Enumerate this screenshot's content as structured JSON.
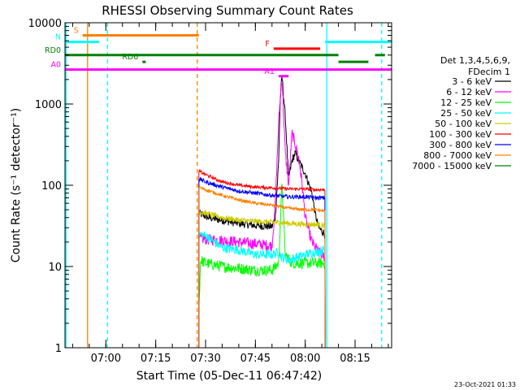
{
  "chart_data": {
    "type": "line",
    "title": "RHESSI Observing Summary Count Rates",
    "xlabel": "Start Time (05-Dec-11 06:47:42)",
    "ylabel": "Count Rate (s⁻¹ detector⁻¹)",
    "y_scale": "log",
    "xlim": [
      "06:47:42",
      "08:26:00"
    ],
    "ylim": [
      1,
      10000
    ],
    "x_ticks": [
      "07:00",
      "07:15",
      "07:30",
      "07:45",
      "08:00",
      "08:15"
    ],
    "y_ticks": [
      "1",
      "10",
      "100",
      "1000",
      "10000"
    ],
    "legend": {
      "placement": "right",
      "header": [
        "Det 1,3,4,5,6,9,",
        "FDecim 1"
      ],
      "entries": [
        {
          "name": "3 - 6 keV",
          "color": "#000000"
        },
        {
          "name": "6 - 12 keV",
          "color": "#ff00ff"
        },
        {
          "name": "12 - 25 keV",
          "color": "#00ff00"
        },
        {
          "name": "25 - 50 keV",
          "color": "#00ffff"
        },
        {
          "name": "50 - 100 keV",
          "color": "#cccc00"
        },
        {
          "name": "100 - 300 keV",
          "color": "#ff0000"
        },
        {
          "name": "300 - 800 keV",
          "color": "#0000ff"
        },
        {
          "name": "800 - 7000 keV",
          "color": "#ff8000"
        },
        {
          "name": "7000 - 15000 keV",
          "color": "#008000"
        }
      ]
    },
    "time_start": "07:28:00",
    "time_end": "08:06:00",
    "series": [
      {
        "name": "3 - 6 keV",
        "color": "#000000",
        "points": [
          [
            "07:28",
            45
          ],
          [
            "07:31",
            40
          ],
          [
            "07:35",
            37
          ],
          [
            "07:40",
            34
          ],
          [
            "07:45",
            32
          ],
          [
            "07:50",
            31
          ],
          [
            "07:51",
            40
          ],
          [
            "07:52",
            200
          ],
          [
            "07:52:30",
            1200
          ],
          [
            "07:53",
            2200
          ],
          [
            "07:54",
            700
          ],
          [
            "07:55",
            120
          ],
          [
            "07:56",
            200
          ],
          [
            "07:57",
            250
          ],
          [
            "07:58",
            200
          ],
          [
            "08:00",
            140
          ],
          [
            "08:02",
            80
          ],
          [
            "08:03",
            45
          ],
          [
            "08:04",
            30
          ],
          [
            "08:06",
            25
          ]
        ]
      },
      {
        "name": "6 - 12 keV",
        "color": "#ff00ff",
        "points": [
          [
            "07:28",
            22
          ],
          [
            "07:35",
            21
          ],
          [
            "07:40",
            20
          ],
          [
            "07:45",
            19
          ],
          [
            "07:50",
            18
          ],
          [
            "07:51",
            60
          ],
          [
            "07:52",
            600
          ],
          [
            "07:53",
            2200
          ],
          [
            "07:54",
            250
          ],
          [
            "07:55",
            100
          ],
          [
            "07:56",
            440
          ],
          [
            "07:57",
            320
          ],
          [
            "07:58",
            220
          ],
          [
            "07:59",
            110
          ],
          [
            "08:00",
            40
          ],
          [
            "08:02",
            20
          ],
          [
            "08:04",
            15
          ],
          [
            "08:06",
            13
          ]
        ]
      },
      {
        "name": "12 - 25 keV",
        "color": "#00ff00",
        "points": [
          [
            "07:28",
            3
          ],
          [
            "07:28:30",
            12
          ],
          [
            "07:30",
            11
          ],
          [
            "07:35",
            10
          ],
          [
            "07:40",
            9.5
          ],
          [
            "07:45",
            9
          ],
          [
            "07:50",
            9
          ],
          [
            "07:52",
            11
          ],
          [
            "07:53",
            100
          ],
          [
            "07:54",
            14
          ],
          [
            "07:56",
            11
          ],
          [
            "08:00",
            11
          ],
          [
            "08:03",
            11
          ],
          [
            "08:06",
            11
          ]
        ]
      },
      {
        "name": "25 - 50 keV",
        "color": "#00ffff",
        "points": [
          [
            "07:28",
            25
          ],
          [
            "07:30",
            24
          ],
          [
            "07:35",
            17
          ],
          [
            "07:40",
            16
          ],
          [
            "07:45",
            14
          ],
          [
            "07:50",
            14
          ],
          [
            "07:52",
            15
          ],
          [
            "07:53",
            13
          ],
          [
            "07:55",
            12
          ],
          [
            "08:00",
            14
          ],
          [
            "08:03",
            15
          ],
          [
            "08:06",
            16
          ]
        ]
      },
      {
        "name": "50 - 100 keV",
        "color": "#cccc00",
        "points": [
          [
            "07:28",
            48
          ],
          [
            "07:30",
            45
          ],
          [
            "07:35",
            40
          ],
          [
            "07:40",
            37
          ],
          [
            "07:45",
            36
          ],
          [
            "07:50",
            35
          ],
          [
            "07:55",
            34
          ],
          [
            "08:00",
            33
          ],
          [
            "08:03",
            33
          ],
          [
            "08:06",
            32
          ]
        ]
      },
      {
        "name": "100 - 300 keV",
        "color": "#ff0000",
        "points": [
          [
            "07:28",
            150
          ],
          [
            "07:30",
            135
          ],
          [
            "07:35",
            110
          ],
          [
            "07:40",
            100
          ],
          [
            "07:45",
            95
          ],
          [
            "07:50",
            93
          ],
          [
            "07:55",
            90
          ],
          [
            "08:00",
            90
          ],
          [
            "08:03",
            88
          ],
          [
            "08:06",
            88
          ]
        ]
      },
      {
        "name": "300 - 800 keV",
        "color": "#0000ff",
        "points": [
          [
            "07:28",
            120
          ],
          [
            "07:30",
            110
          ],
          [
            "07:35",
            95
          ],
          [
            "07:40",
            85
          ],
          [
            "07:45",
            80
          ],
          [
            "07:50",
            75
          ],
          [
            "07:55",
            72
          ],
          [
            "08:00",
            72
          ],
          [
            "08:03",
            70
          ],
          [
            "08:06",
            70
          ]
        ]
      },
      {
        "name": "800 - 7000 keV",
        "color": "#ff8000",
        "points": [
          [
            "07:28",
            95
          ],
          [
            "07:30",
            88
          ],
          [
            "07:35",
            75
          ],
          [
            "07:40",
            66
          ],
          [
            "07:45",
            60
          ],
          [
            "07:50",
            57
          ],
          [
            "07:55",
            52
          ],
          [
            "08:00",
            50
          ],
          [
            "08:03",
            50
          ],
          [
            "08:06",
            48
          ]
        ]
      }
    ],
    "flag_bars": [
      {
        "label": "S",
        "color": "#ff8000",
        "level": 7000,
        "start": "06:53:00",
        "end": "07:28:00"
      },
      {
        "label": "N",
        "color": "#00ffff",
        "level": 5800,
        "start": "06:47:42",
        "end": "06:58:00"
      },
      {
        "label": "",
        "color": "#00ffff",
        "level": 5800,
        "start": "08:06:00",
        "end": "08:26:00"
      },
      {
        "label": "F",
        "color": "#ff0000",
        "level": 4800,
        "start": "07:50:30",
        "end": "08:04:30"
      },
      {
        "label": "RD0",
        "color": "#008000",
        "level": 4000,
        "start": "06:47:42",
        "end": "08:10:00"
      },
      {
        "label": "",
        "color": "#008000",
        "level": 3300,
        "start": "08:10:00",
        "end": "08:19:00"
      },
      {
        "label": "",
        "color": "#008000",
        "level": 4000,
        "start": "08:21:00",
        "end": "08:24:00"
      },
      {
        "label": "RD6",
        "color": "#008000",
        "level": 3300,
        "start": "07:11:00",
        "end": "07:12:00"
      },
      {
        "label": "A0",
        "color": "#ff00ff",
        "level": 2650,
        "start": "06:47:42",
        "end": "08:26:00"
      },
      {
        "label": "A1",
        "color": "#ff00ff",
        "level": 2200,
        "start": "07:52:00",
        "end": "07:55:00"
      }
    ],
    "vertical_markers": [
      {
        "time": "06:48:00",
        "color": "#00ffff",
        "style": "solid"
      },
      {
        "time": "06:54:30",
        "color": "#ff8000",
        "style": "solid"
      },
      {
        "time": "07:00:30",
        "color": "#00ffff",
        "style": "dashed"
      },
      {
        "time": "07:27:30",
        "color": "#ff8000",
        "style": "dashed"
      },
      {
        "time": "08:06:30",
        "color": "#00ffff",
        "style": "solid"
      },
      {
        "time": "08:23:00",
        "color": "#00ffff",
        "style": "dashed"
      }
    ]
  },
  "footer": {
    "timestamp": "23-Oct-2021 01:33"
  }
}
